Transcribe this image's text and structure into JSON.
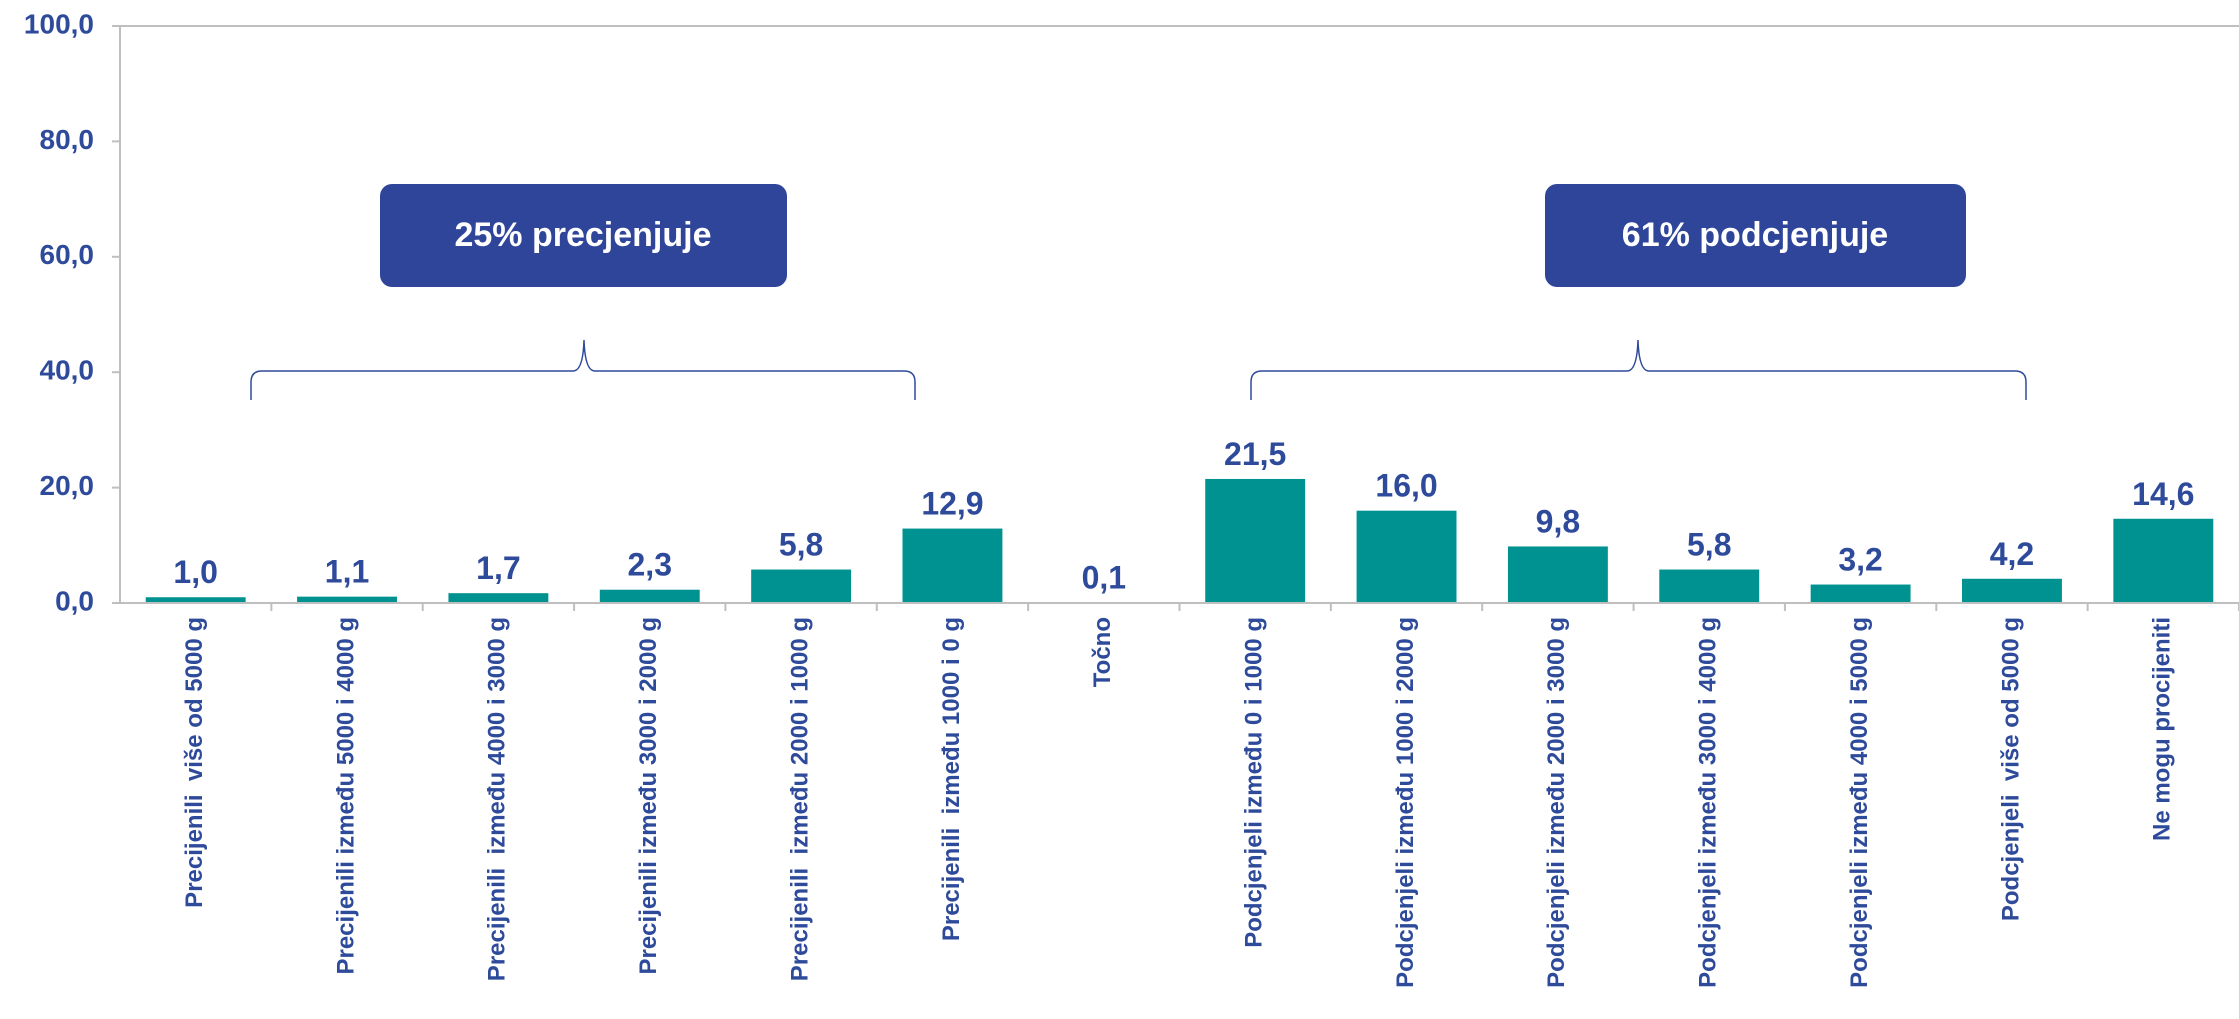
{
  "chart_data": {
    "type": "bar",
    "categories": [
      "Precijenili  više od 5000 g",
      "Precijenili između 5000 i 4000 g",
      "Precijenili  između 4000 i 3000 g",
      "Precijenili između 3000 i 2000 g",
      "Precijenili  između 2000 i 1000 g",
      "Precijenili  između 1000 i 0 g",
      "Točno",
      "Podcjenjeli između 0 i 1000 g",
      "Podcjenjeli između 1000 i 2000 g",
      "Podcjenjeli između 2000 i 3000 g",
      "Podcjenjeli između 3000 i 4000 g",
      "Podcjenjeli između 4000 i 5000 g",
      "Podcjenjeli  više od 5000 g",
      "Ne mogu procijeniti"
    ],
    "values": [
      1.0,
      1.1,
      1.7,
      2.3,
      5.8,
      12.9,
      0.1,
      21.5,
      16.0,
      9.8,
      5.8,
      3.2,
      4.2,
      14.6
    ],
    "value_labels": [
      "1,0",
      "1,1",
      "1,7",
      "2,3",
      "5,8",
      "12,9",
      "0,1",
      "21,5",
      "16,0",
      "9,8",
      "5,8",
      "3,2",
      "4,2",
      "14,6"
    ],
    "color": "#009191",
    "ylim": [
      0,
      100
    ],
    "yticks": [
      {
        "value": 0,
        "label": "0,0"
      },
      {
        "value": 20,
        "label": "20,0"
      },
      {
        "value": 40,
        "label": "40,0"
      },
      {
        "value": 60,
        "label": "60,0"
      },
      {
        "value": 80,
        "label": "80,0"
      },
      {
        "value": 100,
        "label": "100,0"
      }
    ],
    "grid": false,
    "annotations": [
      "25% precjenjuje",
      "61% podcjenjuje"
    ]
  }
}
